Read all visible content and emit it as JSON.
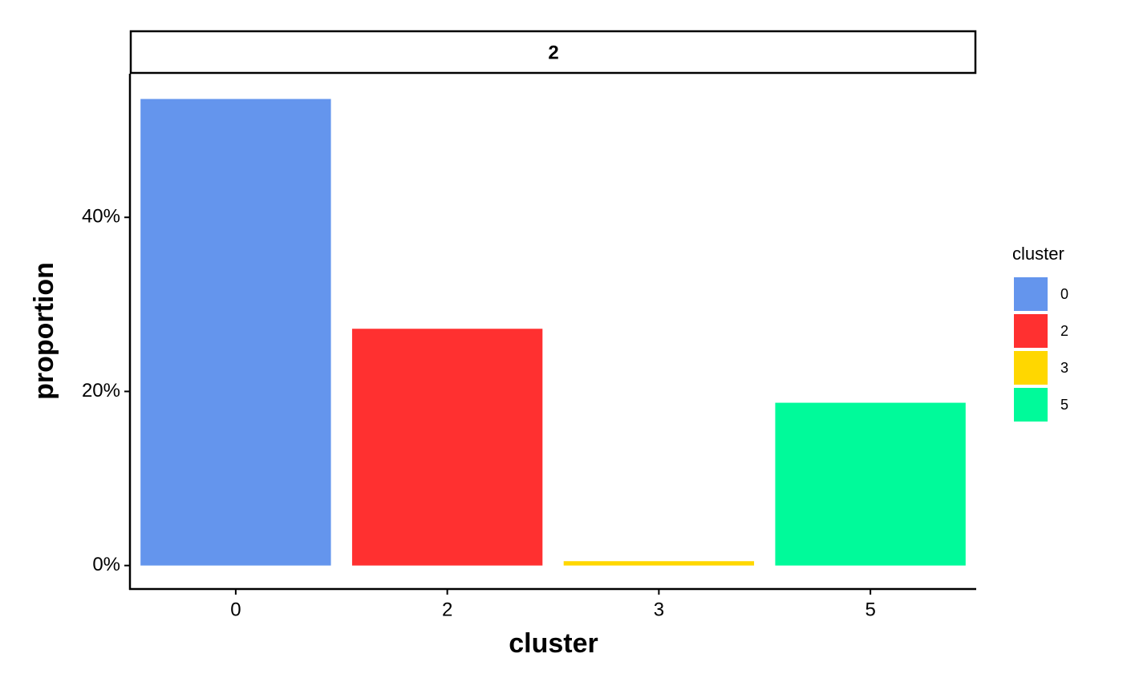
{
  "chart_data": {
    "type": "bar",
    "facet": "2",
    "x_label": "cluster",
    "y_label": "proportion",
    "categories": [
      "0",
      "2",
      "3",
      "5"
    ],
    "values": [
      53.6,
      27.2,
      0.5,
      18.7
    ],
    "colors": [
      "#6495ED",
      "#FF3030",
      "#FFD700",
      "#00FA9A"
    ],
    "ylim": [
      -2.7,
      56.5
    ],
    "yticks": [
      {
        "value": 0,
        "label": "0%"
      },
      {
        "value": 20,
        "label": "20%"
      },
      {
        "value": 40,
        "label": "40%"
      }
    ],
    "legend": {
      "title": "cluster",
      "position": "right"
    }
  }
}
